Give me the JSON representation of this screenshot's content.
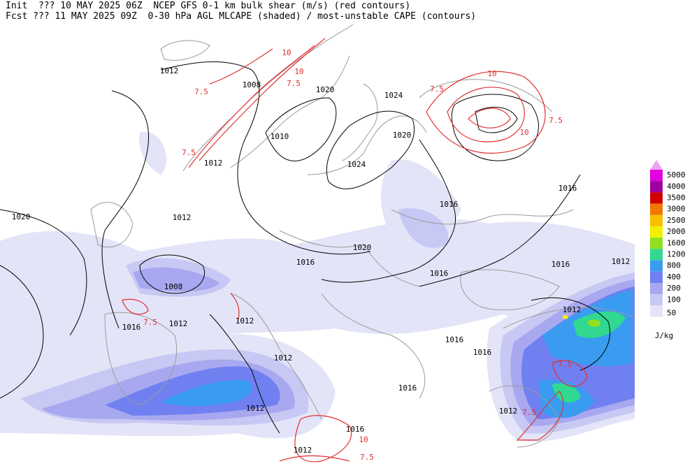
{
  "header": {
    "init_line": "Init  ??? 10 MAY 2025 06Z  NCEP GFS 0-1 km bulk shear (m/s) (red contours)",
    "fcst_line": "Fcst ??? 11 MAY 2025 09Z  0-30 hPa AGL MLCAPE (shaded) / most-unstable CAPE (contours)"
  },
  "isobar_labels": [
    1012,
    1008,
    1020,
    1024,
    1020,
    1010,
    1012,
    1024,
    1016,
    1016,
    1020,
    1012,
    1020,
    1016,
    1016,
    1012,
    1016,
    1008,
    1012,
    1016,
    1012,
    1012,
    1016,
    1016,
    1012,
    1016,
    1012,
    1012,
    1016,
    1012
  ],
  "shear_labels": [
    7.5,
    10,
    10,
    7.5,
    10,
    7.5,
    10,
    7.5,
    7.5,
    7.5,
    7.5,
    7.5,
    10,
    7.5
  ],
  "legend": {
    "levels": [
      {
        "value": 5000,
        "color": "#e000e0"
      },
      {
        "value": 4000,
        "color": "#a000a0"
      },
      {
        "value": 3500,
        "color": "#d00000"
      },
      {
        "value": 3000,
        "color": "#f07800"
      },
      {
        "value": 2500,
        "color": "#f8c000"
      },
      {
        "value": 2000,
        "color": "#f0f000"
      },
      {
        "value": 1600,
        "color": "#90e020"
      },
      {
        "value": 1200,
        "color": "#30d890"
      },
      {
        "value": 800,
        "color": "#3a9cf0"
      },
      {
        "value": 400,
        "color": "#7080f0"
      },
      {
        "value": 200,
        "color": "#a8a8f0"
      },
      {
        "value": 100,
        "color": "#c8c8f4"
      },
      {
        "value": 50,
        "color": "#e4e4f8"
      }
    ],
    "unit": "J/kg"
  }
}
